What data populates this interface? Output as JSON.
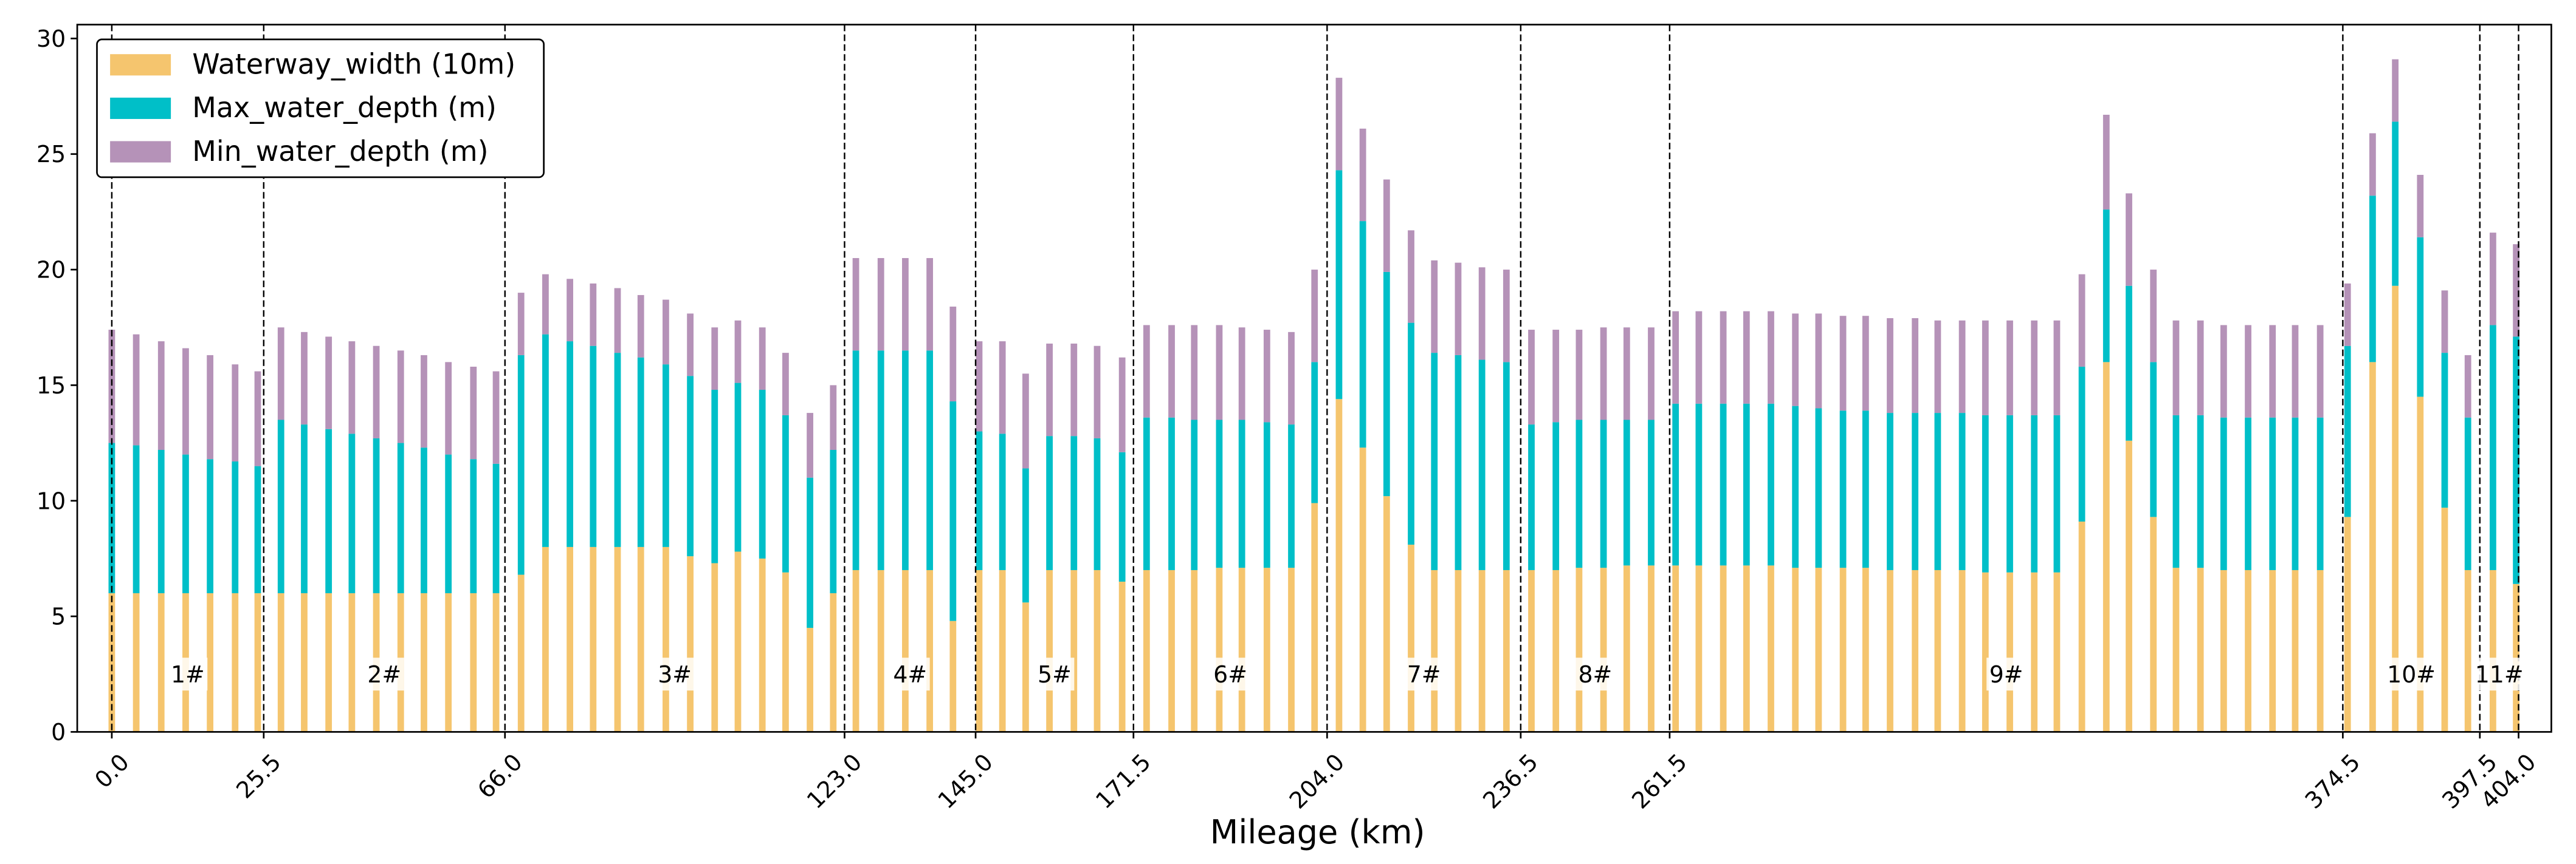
{
  "chart_data": {
    "type": "stacked_bar",
    "xlabel": "Mileage (km)",
    "x": [
      0,
      4.1,
      8.3,
      12.4,
      16.5,
      20.7,
      24.5,
      28.4,
      32.3,
      36.4,
      40.3,
      44.4,
      48.5,
      52.4,
      56.5,
      60.7,
      64.5,
      68.7,
      72.8,
      76.9,
      80.8,
      84.9,
      88.8,
      93.0,
      97.1,
      101.2,
      105.1,
      109.2,
      113.1,
      117.2,
      121.1,
      124.9,
      129.1,
      133.2,
      137.3,
      141.2,
      145.6,
      149.5,
      153.4,
      157.4,
      161.5,
      165.4,
      169.6,
      173.7,
      177.9,
      181.7,
      185.9,
      189.7,
      193.9,
      198.0,
      201.9,
      206.0,
      210.0,
      214.0,
      218.1,
      222.0,
      226.0,
      230.0,
      234.1,
      238.3,
      242.4,
      246.3,
      250.4,
      254.3,
      258.4,
      262.5,
      266.4,
      270.5,
      274.4,
      278.5,
      282.6,
      286.5,
      290.6,
      294.4,
      298.5,
      302.7,
      306.5,
      310.6,
      314.5,
      318.6,
      322.7,
      326.5,
      330.7,
      334.8,
      338.6,
      342.7,
      346.5,
      350.6,
      354.5,
      358.6,
      362.7,
      366.5,
      370.7,
      375.3,
      379.5,
      383.3,
      387.5,
      391.6,
      395.5,
      399.7,
      403.6
    ],
    "series": [
      {
        "name": "Waterway_width (10m)",
        "color": "#f5c56e",
        "values": [
          6,
          6,
          6,
          6,
          6,
          6,
          6,
          6,
          6,
          6,
          6,
          6,
          6,
          6,
          6,
          6,
          6,
          6.8,
          8,
          8,
          8,
          8,
          8,
          8,
          7.6,
          7.3,
          7.8,
          7.5,
          6.9,
          4.5,
          6,
          7,
          7,
          7,
          7,
          4.8,
          7,
          7,
          5.6,
          7,
          7,
          7,
          6.5,
          7,
          7,
          7,
          7.1,
          7.1,
          7.1,
          7.1,
          9.9,
          14.4,
          12.3,
          10.2,
          8.1,
          7,
          7,
          7,
          7,
          7,
          7,
          7.1,
          7.1,
          7.2,
          7.2,
          7.2,
          7.2,
          7.2,
          7.2,
          7.2,
          7.1,
          7.1,
          7.1,
          7.1,
          7,
          7,
          7,
          7,
          6.9,
          6.9,
          6.9,
          6.9,
          9.1,
          16,
          12.6,
          9.3,
          7.1,
          7.1,
          7,
          7,
          7,
          7,
          7,
          9.3,
          16,
          19.3,
          14.5,
          9.7,
          7,
          7,
          6.4
        ]
      },
      {
        "name": "Max_water_depth (m)",
        "color": "#00bfc8",
        "values": [
          6.5,
          6.4,
          6.2,
          6,
          5.8,
          5.7,
          5.5,
          7.5,
          7.3,
          7.1,
          6.9,
          6.7,
          6.5,
          6.3,
          6,
          5.8,
          5.6,
          9.5,
          9.2,
          8.9,
          8.7,
          8.4,
          8.2,
          7.9,
          7.8,
          7.5,
          7.3,
          7.3,
          6.8,
          6.5,
          6.2,
          9.5,
          9.5,
          9.5,
          9.5,
          9.5,
          6,
          5.9,
          5.8,
          5.8,
          5.8,
          5.7,
          5.6,
          6.6,
          6.6,
          6.5,
          6.4,
          6.4,
          6.3,
          6.2,
          6.1,
          9.9,
          9.8,
          9.7,
          9.6,
          9.4,
          9.3,
          9.1,
          9,
          6.3,
          6.4,
          6.4,
          6.4,
          6.3,
          6.3,
          7,
          7,
          7,
          7,
          7,
          7,
          6.9,
          6.8,
          6.8,
          6.8,
          6.8,
          6.8,
          6.8,
          6.8,
          6.8,
          6.8,
          6.8,
          6.7,
          6.6,
          6.7,
          6.7,
          6.6,
          6.6,
          6.6,
          6.6,
          6.6,
          6.6,
          6.6,
          7.4,
          7.2,
          7.1,
          6.9,
          6.7,
          6.6,
          10.6,
          10.7
        ]
      },
      {
        "name": "Min_water_depth (m)",
        "color": "#b592b8",
        "values": [
          4.9,
          4.8,
          4.7,
          4.6,
          4.5,
          4.2,
          4.1,
          4,
          4,
          4,
          4,
          4,
          4,
          4,
          4,
          4,
          4,
          2.7,
          2.6,
          2.7,
          2.7,
          2.8,
          2.7,
          2.8,
          2.7,
          2.7,
          2.7,
          2.7,
          2.7,
          2.8,
          2.8,
          4,
          4,
          4,
          4,
          4.1,
          3.9,
          4,
          4.1,
          4,
          4,
          4,
          4.1,
          4,
          4,
          4.1,
          4.1,
          4,
          4,
          4,
          4,
          4,
          4,
          4,
          4,
          4,
          4,
          4,
          4,
          4.1,
          4,
          3.9,
          4,
          4,
          4,
          4,
          4,
          4,
          4,
          4,
          4,
          4.1,
          4.1,
          4.1,
          4.1,
          4.1,
          4,
          4,
          4.1,
          4.1,
          4.1,
          4.1,
          4,
          4.1,
          4,
          4,
          4.1,
          4.1,
          4,
          4,
          4,
          4,
          4,
          2.7,
          2.7,
          2.7,
          2.7,
          2.7,
          2.7,
          4,
          4
        ]
      }
    ],
    "section_labels": [
      "1#",
      "2#",
      "3#",
      "4#",
      "5#",
      "6#",
      "7#",
      "8#",
      "9#",
      "10#",
      "11#"
    ],
    "xlim": [
      -5.8,
      409.5
    ],
    "xticks": [
      {
        "value": 0,
        "label": "0.0"
      },
      25.5,
      {
        "value": 66,
        "label": "66.0"
      },
      {
        "value": 123,
        "label": "123.0"
      },
      {
        "value": 145,
        "label": "145.0"
      },
      171.5,
      {
        "value": 204,
        "label": "204.0"
      },
      236.5,
      261.5,
      374.5,
      397.5,
      {
        "value": 404,
        "label": "404.0"
      }
    ],
    "ylim": [
      0,
      30.6
    ],
    "yticks": [
      0,
      5,
      10,
      15,
      20,
      25,
      30
    ],
    "section_dividers": true,
    "legend": "upper left"
  }
}
